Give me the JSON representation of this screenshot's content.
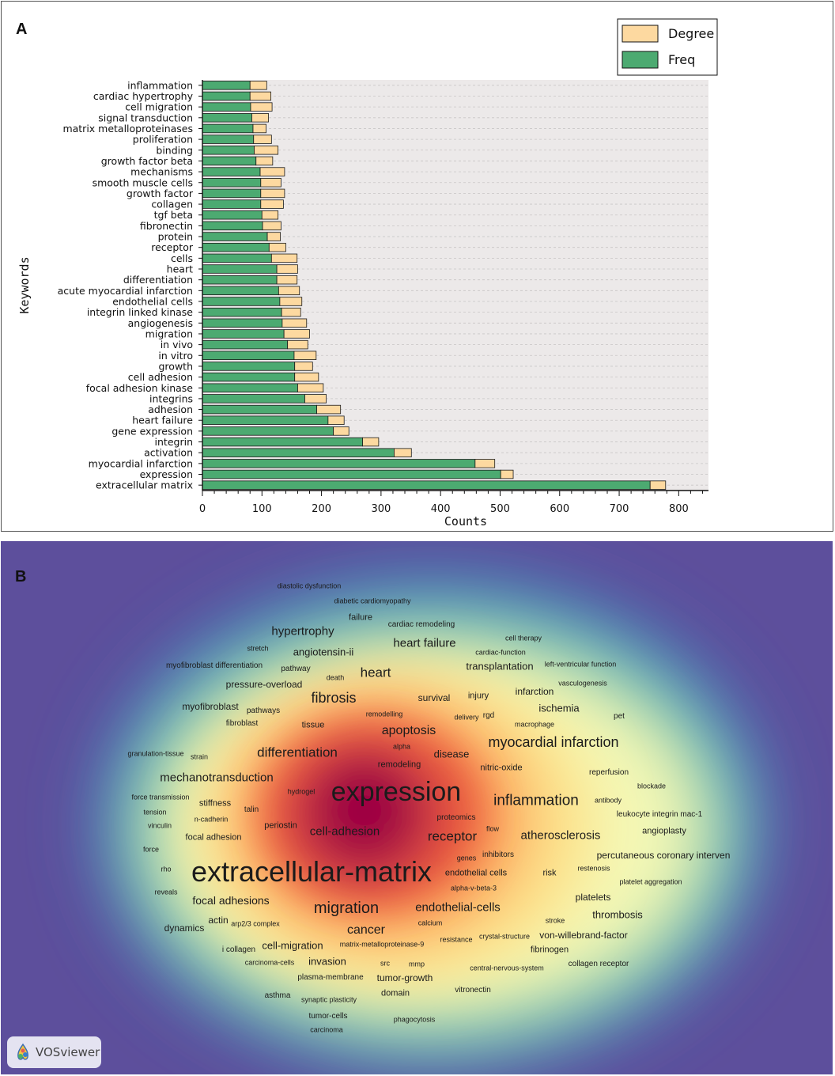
{
  "panel_a": {
    "label": "A"
  },
  "panel_b": {
    "label": "B",
    "badge_text": "VOSviewer",
    "badge_icon": "vosviewer-logo-icon"
  },
  "chart_data": {
    "type": "bar",
    "orientation": "horizontal",
    "stacked": true,
    "xlabel": "Counts",
    "ylabel": "Keywords",
    "xlim": [
      0,
      850
    ],
    "xticks": [
      0,
      100,
      200,
      300,
      400,
      500,
      600,
      700,
      800
    ],
    "grid": true,
    "legend_position": "top-right",
    "colors": {
      "Freq": "#4caa71",
      "Degree": "#fdd9a0",
      "plot_bg": "#ece9e9",
      "outline": "#1a1a1a"
    },
    "categories": [
      "inflammation",
      "cardiac hypertrophy",
      "cell migration",
      "signal transduction",
      "matrix metalloproteinases",
      "proliferation",
      "binding",
      "growth factor beta",
      "mechanisms",
      "smooth muscle cells",
      "growth factor",
      "collagen",
      "tgf beta",
      "fibronectin",
      "protein",
      "receptor",
      "cells",
      "heart",
      "differentiation",
      "acute myocardial infarction",
      "endothelial cells",
      "integrin linked kinase",
      "angiogenesis",
      "migration",
      "in vivo",
      "in vitro",
      "growth",
      "cell adhesion",
      "focal adhesion kinase",
      "integrins",
      "adhesion",
      "heart failure",
      "gene expression",
      "integrin",
      "activation",
      "myocardial infarction",
      "expression",
      "extracellular matrix"
    ],
    "series": [
      {
        "name": "Degree",
        "values": [
          28,
          35,
          36,
          28,
          22,
          30,
          40,
          28,
          41,
          34,
          40,
          38,
          27,
          31,
          22,
          28,
          43,
          35,
          34,
          35,
          37,
          32,
          41,
          43,
          34,
          37,
          30,
          40,
          43,
          36,
          40,
          27,
          26,
          27,
          29,
          33,
          21,
          26
        ]
      },
      {
        "name": "Freq",
        "values": [
          80,
          80,
          81,
          83,
          85,
          86,
          87,
          90,
          97,
          98,
          98,
          98,
          100,
          101,
          109,
          112,
          116,
          125,
          125,
          128,
          130,
          133,
          134,
          137,
          143,
          154,
          155,
          155,
          160,
          172,
          192,
          211,
          220,
          269,
          322,
          458,
          501,
          752
        ]
      }
    ]
  },
  "word_cloud": {
    "words": [
      {
        "text": "diastolic dysfunction",
        "size": 9
      },
      {
        "text": "diabetic cardiomyopathy",
        "size": 9
      },
      {
        "text": "failure",
        "size": 11
      },
      {
        "text": "cardiac remodeling",
        "size": 10
      },
      {
        "text": "hypertrophy",
        "size": 15
      },
      {
        "text": "heart failure",
        "size": 15
      },
      {
        "text": "cell therapy",
        "size": 9
      },
      {
        "text": "stretch",
        "size": 9
      },
      {
        "text": "angiotensin-ii",
        "size": 13
      },
      {
        "text": "cardiac-function",
        "size": 9
      },
      {
        "text": "myofibroblast differentiation",
        "size": 10
      },
      {
        "text": "pathway",
        "size": 10
      },
      {
        "text": "heart",
        "size": 17
      },
      {
        "text": "transplantation",
        "size": 13
      },
      {
        "text": "left-ventricular function",
        "size": 9
      },
      {
        "text": "death",
        "size": 9
      },
      {
        "text": "pressure-overload",
        "size": 12
      },
      {
        "text": "vasculogenesis",
        "size": 9
      },
      {
        "text": "fibrosis",
        "size": 18
      },
      {
        "text": "survival",
        "size": 12
      },
      {
        "text": "injury",
        "size": 11
      },
      {
        "text": "infarction",
        "size": 12
      },
      {
        "text": "myofibroblast",
        "size": 12
      },
      {
        "text": "pathways",
        "size": 10
      },
      {
        "text": "ischemia",
        "size": 13
      },
      {
        "text": "remodelling",
        "size": 9
      },
      {
        "text": "delivery",
        "size": 9
      },
      {
        "text": "rgd",
        "size": 10
      },
      {
        "text": "pet",
        "size": 10
      },
      {
        "text": "fibroblast",
        "size": 10
      },
      {
        "text": "tissue",
        "size": 11
      },
      {
        "text": "macrophage",
        "size": 9
      },
      {
        "text": "apoptosis",
        "size": 16
      },
      {
        "text": "myocardial infarction",
        "size": 18
      },
      {
        "text": "alpha",
        "size": 9
      },
      {
        "text": "differentiation",
        "size": 17
      },
      {
        "text": "disease",
        "size": 13
      },
      {
        "text": "granulation-tissue",
        "size": 9
      },
      {
        "text": "strain",
        "size": 9
      },
      {
        "text": "remodeling",
        "size": 11
      },
      {
        "text": "nitric-oxide",
        "size": 11
      },
      {
        "text": "mechanotransduction",
        "size": 15
      },
      {
        "text": "reperfusion",
        "size": 10
      },
      {
        "text": "expression",
        "size": 34
      },
      {
        "text": "blockade",
        "size": 9
      },
      {
        "text": "hydrogel",
        "size": 9
      },
      {
        "text": "force transmission",
        "size": 9
      },
      {
        "text": "inflammation",
        "size": 19
      },
      {
        "text": "antibody",
        "size": 9
      },
      {
        "text": "stiffness",
        "size": 11
      },
      {
        "text": "tension",
        "size": 9
      },
      {
        "text": "talin",
        "size": 10
      },
      {
        "text": "leukocyte integrin mac-1",
        "size": 10
      },
      {
        "text": "n-cadherin",
        "size": 9
      },
      {
        "text": "proteomics",
        "size": 10
      },
      {
        "text": "vinculin",
        "size": 9
      },
      {
        "text": "periostin",
        "size": 11
      },
      {
        "text": "cell-adhesion",
        "size": 15
      },
      {
        "text": "flow",
        "size": 9
      },
      {
        "text": "angioplasty",
        "size": 11
      },
      {
        "text": "focal adhesion",
        "size": 11
      },
      {
        "text": "receptor",
        "size": 17
      },
      {
        "text": "atherosclerosis",
        "size": 15
      },
      {
        "text": "force",
        "size": 9
      },
      {
        "text": "inhibitors",
        "size": 10
      },
      {
        "text": "percutaneous coronary interven",
        "size": 12
      },
      {
        "text": "genes",
        "size": 9
      },
      {
        "text": "rho",
        "size": 9
      },
      {
        "text": "extracellular-matrix",
        "size": 36
      },
      {
        "text": "endothelial cells",
        "size": 11
      },
      {
        "text": "risk",
        "size": 11
      },
      {
        "text": "restenosis",
        "size": 9
      },
      {
        "text": "platelet aggregation",
        "size": 9
      },
      {
        "text": "alpha-v-beta-3",
        "size": 9
      },
      {
        "text": "reveals",
        "size": 9
      },
      {
        "text": "focal adhesions",
        "size": 14
      },
      {
        "text": "platelets",
        "size": 12
      },
      {
        "text": "migration",
        "size": 20
      },
      {
        "text": "endothelial-cells",
        "size": 15
      },
      {
        "text": "thrombosis",
        "size": 13
      },
      {
        "text": "actin",
        "size": 12
      },
      {
        "text": "dynamics",
        "size": 12
      },
      {
        "text": "arp2/3 complex",
        "size": 9
      },
      {
        "text": "calcium",
        "size": 9
      },
      {
        "text": "stroke",
        "size": 9
      },
      {
        "text": "cancer",
        "size": 16
      },
      {
        "text": "resistance",
        "size": 9
      },
      {
        "text": "crystal-structure",
        "size": 9
      },
      {
        "text": "von-willebrand-factor",
        "size": 12
      },
      {
        "text": "cell-migration",
        "size": 13
      },
      {
        "text": "matrix-metalloproteinase-9",
        "size": 9
      },
      {
        "text": "i collagen",
        "size": 10
      },
      {
        "text": "fibrinogen",
        "size": 11
      },
      {
        "text": "carcinoma-cells",
        "size": 9
      },
      {
        "text": "invasion",
        "size": 13
      },
      {
        "text": "src",
        "size": 9
      },
      {
        "text": "mmp",
        "size": 9
      },
      {
        "text": "central-nervous-system",
        "size": 9
      },
      {
        "text": "collagen receptor",
        "size": 10
      },
      {
        "text": "plasma-membrane",
        "size": 10
      },
      {
        "text": "tumor-growth",
        "size": 12
      },
      {
        "text": "domain",
        "size": 11
      },
      {
        "text": "vitronectin",
        "size": 10
      },
      {
        "text": "asthma",
        "size": 10
      },
      {
        "text": "synaptic plasticity",
        "size": 9
      },
      {
        "text": "tumor-cells",
        "size": 10
      },
      {
        "text": "phagocytosis",
        "size": 9
      },
      {
        "text": "carcinoma",
        "size": 9
      }
    ]
  }
}
